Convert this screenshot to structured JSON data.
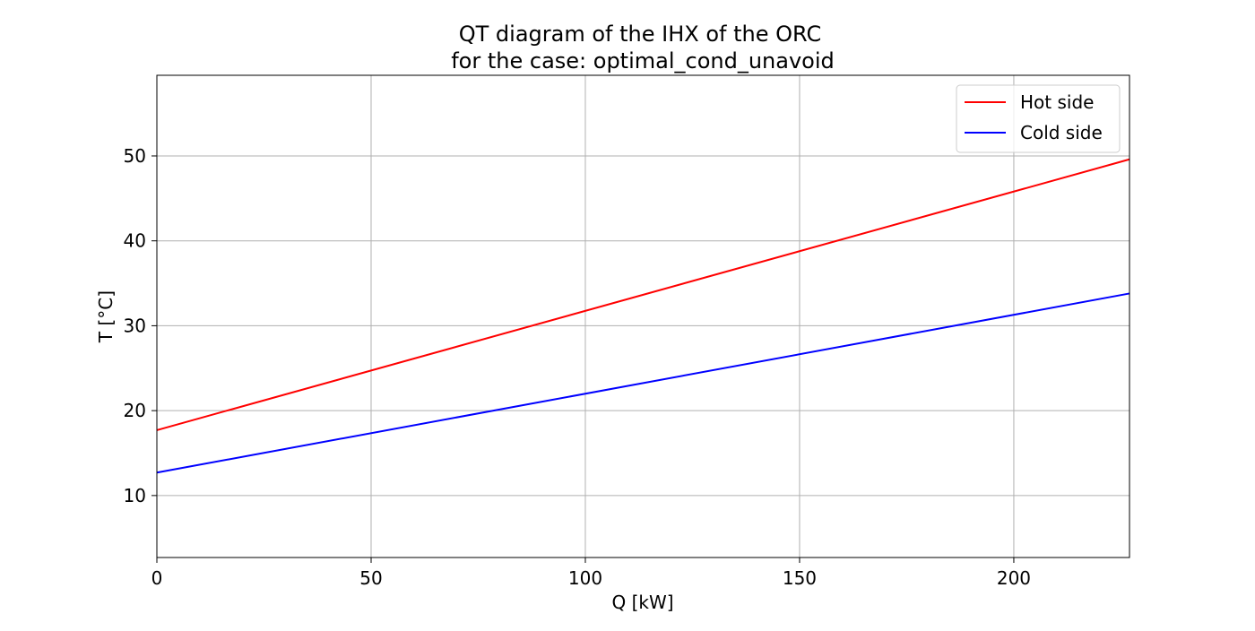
{
  "chart_data": {
    "type": "line",
    "title": "QT diagram of the IHX of the ORC",
    "subtitle": "for the case: optimal_cond_unavoid",
    "xlabel": "Q [kW]",
    "ylabel": "T [°C]",
    "xlim": [
      0,
      227
    ],
    "ylim": [
      2.7,
      59.5
    ],
    "xticks": [
      0,
      50,
      100,
      150,
      200
    ],
    "yticks": [
      10,
      20,
      30,
      40,
      50
    ],
    "grid": true,
    "legend_position": "top-right",
    "series": [
      {
        "name": "Hot side",
        "color": "#ff0000",
        "x": [
          0,
          227
        ],
        "y": [
          17.7,
          49.6
        ]
      },
      {
        "name": "Cold side",
        "color": "#0000ff",
        "x": [
          0,
          227
        ],
        "y": [
          12.7,
          33.8
        ]
      }
    ]
  }
}
